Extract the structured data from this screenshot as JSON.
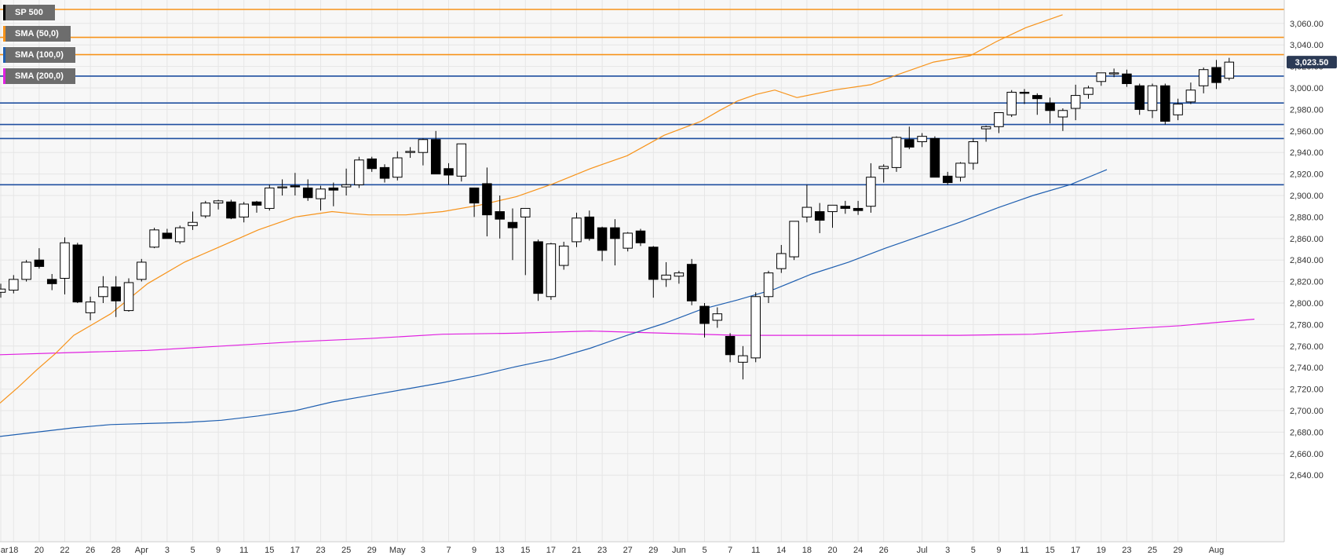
{
  "legend": [
    {
      "label": "SP 500",
      "color": "#000000"
    },
    {
      "label": "SMA (50,0)",
      "color": "#f7931a"
    },
    {
      "label": "SMA (100,0)",
      "color": "#1f5fb0"
    },
    {
      "label": "SMA (200,0)",
      "color": "#e020e0"
    }
  ],
  "current_price_label": "3,023.50",
  "chart_data": {
    "type": "candlestick",
    "instrument": "SP 500",
    "ylim": [
      2620,
      3100
    ],
    "y_ticks": [
      2640,
      2660,
      2680,
      2700,
      2720,
      2740,
      2760,
      2780,
      2800,
      2820,
      2840,
      2860,
      2880,
      2900,
      2920,
      2940,
      2960,
      2980,
      3000,
      3020,
      3040,
      3060
    ],
    "y_tick_labels": [
      "2,640.00",
      "2,660.00",
      "2,680.00",
      "2,700.00",
      "2,720.00",
      "2,740.00",
      "2,760.00",
      "2,780.00",
      "2,800.00",
      "2,820.00",
      "2,840.00",
      "2,860.00",
      "2,880.00",
      "2,900.00",
      "2,920.00",
      "2,940.00",
      "2,960.00",
      "2,980.00",
      "3,000.00",
      "3,020.00",
      "3,040.00",
      "3,060.00"
    ],
    "x_ticks": [
      {
        "label": "Mar",
        "d": 0
      },
      {
        "label": "18",
        "d": 1
      },
      {
        "label": "20",
        "d": 3
      },
      {
        "label": "22",
        "d": 5
      },
      {
        "label": "26",
        "d": 7
      },
      {
        "label": "28",
        "d": 9
      },
      {
        "label": "Apr",
        "d": 11
      },
      {
        "label": "3",
        "d": 13
      },
      {
        "label": "5",
        "d": 15
      },
      {
        "label": "9",
        "d": 17
      },
      {
        "label": "11",
        "d": 19
      },
      {
        "label": "15",
        "d": 21
      },
      {
        "label": "17",
        "d": 23
      },
      {
        "label": "23",
        "d": 25
      },
      {
        "label": "25",
        "d": 27
      },
      {
        "label": "29",
        "d": 29
      },
      {
        "label": "May",
        "d": 31
      },
      {
        "label": "3",
        "d": 33
      },
      {
        "label": "7",
        "d": 35
      },
      {
        "label": "9",
        "d": 37
      },
      {
        "label": "13",
        "d": 39
      },
      {
        "label": "15",
        "d": 41
      },
      {
        "label": "17",
        "d": 43
      },
      {
        "label": "21",
        "d": 45
      },
      {
        "label": "23",
        "d": 47
      },
      {
        "label": "27",
        "d": 49
      },
      {
        "label": "29",
        "d": 51
      },
      {
        "label": "Jun",
        "d": 53
      },
      {
        "label": "5",
        "d": 55
      },
      {
        "label": "7",
        "d": 57
      },
      {
        "label": "11",
        "d": 59
      },
      {
        "label": "14",
        "d": 61
      },
      {
        "label": "18",
        "d": 63
      },
      {
        "label": "20",
        "d": 65
      },
      {
        "label": "24",
        "d": 67
      },
      {
        "label": "26",
        "d": 69
      },
      {
        "label": "Jul",
        "d": 72
      },
      {
        "label": "3",
        "d": 74
      },
      {
        "label": "5",
        "d": 76
      },
      {
        "label": "9",
        "d": 78
      },
      {
        "label": "11",
        "d": 80
      },
      {
        "label": "15",
        "d": 82
      },
      {
        "label": "17",
        "d": 84
      },
      {
        "label": "19",
        "d": 86
      },
      {
        "label": "23",
        "d": 88
      },
      {
        "label": "25",
        "d": 90
      },
      {
        "label": "29",
        "d": 92
      },
      {
        "label": "Aug",
        "d": 95
      }
    ],
    "horizontal_levels": [
      {
        "value": 3073,
        "color": "#f7931a"
      },
      {
        "value": 3047,
        "color": "#f7931a"
      },
      {
        "value": 3031,
        "color": "#f7931a"
      },
      {
        "value": 3011,
        "color": "#1f4fa0"
      },
      {
        "value": 2986,
        "color": "#1f4fa0"
      },
      {
        "value": 2966,
        "color": "#1f4fa0"
      },
      {
        "value": 2953,
        "color": "#1f4fa0"
      },
      {
        "value": 2910,
        "color": "#1f4fa0"
      }
    ],
    "candles": [
      {
        "o": 2810,
        "h": 2818,
        "l": 2805,
        "c": 2813
      },
      {
        "o": 2812,
        "h": 2826,
        "l": 2809,
        "c": 2822
      },
      {
        "o": 2822,
        "h": 2840,
        "l": 2820,
        "c": 2838
      },
      {
        "o": 2840,
        "h": 2851,
        "l": 2832,
        "c": 2834
      },
      {
        "o": 2822,
        "h": 2827,
        "l": 2812,
        "c": 2818
      },
      {
        "o": 2823,
        "h": 2861,
        "l": 2808,
        "c": 2856
      },
      {
        "o": 2854,
        "h": 2856,
        "l": 2800,
        "c": 2801
      },
      {
        "o": 2791,
        "h": 2806,
        "l": 2784,
        "c": 2801
      },
      {
        "o": 2806,
        "h": 2825,
        "l": 2800,
        "c": 2815
      },
      {
        "o": 2815,
        "h": 2825,
        "l": 2787,
        "c": 2802
      },
      {
        "o": 2793,
        "h": 2823,
        "l": 2792,
        "c": 2819
      },
      {
        "o": 2822,
        "h": 2841,
        "l": 2820,
        "c": 2838
      },
      {
        "o": 2852,
        "h": 2870,
        "l": 2851,
        "c": 2868
      },
      {
        "o": 2865,
        "h": 2869,
        "l": 2860,
        "c": 2860
      },
      {
        "o": 2857,
        "h": 2872,
        "l": 2855,
        "c": 2870
      },
      {
        "o": 2872,
        "h": 2885,
        "l": 2868,
        "c": 2875
      },
      {
        "o": 2881,
        "h": 2895,
        "l": 2879,
        "c": 2893
      },
      {
        "o": 2893,
        "h": 2896,
        "l": 2887,
        "c": 2895
      },
      {
        "o": 2894,
        "h": 2896,
        "l": 2878,
        "c": 2879
      },
      {
        "o": 2880,
        "h": 2894,
        "l": 2875,
        "c": 2892
      },
      {
        "o": 2894,
        "h": 2895,
        "l": 2884,
        "c": 2891
      },
      {
        "o": 2888,
        "h": 2910,
        "l": 2886,
        "c": 2907
      },
      {
        "o": 2908,
        "h": 2915,
        "l": 2900,
        "c": 2908
      },
      {
        "o": 2909,
        "h": 2921,
        "l": 2900,
        "c": 2908
      },
      {
        "o": 2907,
        "h": 2915,
        "l": 2895,
        "c": 2898
      },
      {
        "o": 2897,
        "h": 2909,
        "l": 2886,
        "c": 2906
      },
      {
        "o": 2907,
        "h": 2912,
        "l": 2890,
        "c": 2905
      },
      {
        "o": 2908,
        "h": 2925,
        "l": 2900,
        "c": 2910
      },
      {
        "o": 2910,
        "h": 2936,
        "l": 2907,
        "c": 2933
      },
      {
        "o": 2934,
        "h": 2936,
        "l": 2922,
        "c": 2925
      },
      {
        "o": 2926,
        "h": 2929,
        "l": 2912,
        "c": 2916
      },
      {
        "o": 2917,
        "h": 2941,
        "l": 2914,
        "c": 2935
      },
      {
        "o": 2940,
        "h": 2945,
        "l": 2935,
        "c": 2941
      },
      {
        "o": 2940,
        "h": 2953,
        "l": 2928,
        "c": 2952
      },
      {
        "o": 2952,
        "h": 2960,
        "l": 2920,
        "c": 2920
      },
      {
        "o": 2925,
        "h": 2930,
        "l": 2910,
        "c": 2919
      },
      {
        "o": 2918,
        "h": 2948,
        "l": 2913,
        "c": 2948
      },
      {
        "o": 2907,
        "h": 2907,
        "l": 2880,
        "c": 2893
      },
      {
        "o": 2911,
        "h": 2926,
        "l": 2862,
        "c": 2882
      },
      {
        "o": 2885,
        "h": 2900,
        "l": 2860,
        "c": 2878
      },
      {
        "o": 2875,
        "h": 2888,
        "l": 2840,
        "c": 2870
      },
      {
        "o": 2880,
        "h": 2886,
        "l": 2826,
        "c": 2888
      },
      {
        "o": 2857,
        "h": 2859,
        "l": 2802,
        "c": 2809
      },
      {
        "o": 2806,
        "h": 2856,
        "l": 2803,
        "c": 2855
      },
      {
        "o": 2835,
        "h": 2857,
        "l": 2831,
        "c": 2853
      },
      {
        "o": 2857,
        "h": 2884,
        "l": 2852,
        "c": 2879
      },
      {
        "o": 2880,
        "h": 2886,
        "l": 2858,
        "c": 2860
      },
      {
        "o": 2870,
        "h": 2871,
        "l": 2839,
        "c": 2849
      },
      {
        "o": 2870,
        "h": 2878,
        "l": 2835,
        "c": 2860
      },
      {
        "o": 2851,
        "h": 2866,
        "l": 2848,
        "c": 2865
      },
      {
        "o": 2867,
        "h": 2869,
        "l": 2853,
        "c": 2856
      },
      {
        "o": 2852,
        "h": 2853,
        "l": 2805,
        "c": 2822
      },
      {
        "o": 2822,
        "h": 2838,
        "l": 2815,
        "c": 2826
      },
      {
        "o": 2825,
        "h": 2830,
        "l": 2818,
        "c": 2828
      },
      {
        "o": 2836,
        "h": 2841,
        "l": 2798,
        "c": 2802
      },
      {
        "o": 2797,
        "h": 2800,
        "l": 2768,
        "c": 2781
      },
      {
        "o": 2784,
        "h": 2796,
        "l": 2777,
        "c": 2790
      },
      {
        "o": 2769,
        "h": 2772,
        "l": 2745,
        "c": 2752
      },
      {
        "o": 2745,
        "h": 2760,
        "l": 2729,
        "c": 2751
      },
      {
        "o": 2749,
        "h": 2810,
        "l": 2745,
        "c": 2806
      },
      {
        "o": 2806,
        "h": 2830,
        "l": 2800,
        "c": 2828
      },
      {
        "o": 2832,
        "h": 2854,
        "l": 2828,
        "c": 2846
      },
      {
        "o": 2843,
        "h": 2876,
        "l": 2840,
        "c": 2876
      },
      {
        "o": 2880,
        "h": 2910,
        "l": 2875,
        "c": 2889
      },
      {
        "o": 2885,
        "h": 2893,
        "l": 2865,
        "c": 2877
      },
      {
        "o": 2885,
        "h": 2891,
        "l": 2870,
        "c": 2891
      },
      {
        "o": 2890,
        "h": 2895,
        "l": 2883,
        "c": 2888
      },
      {
        "o": 2888,
        "h": 2895,
        "l": 2882,
        "c": 2886
      },
      {
        "o": 2890,
        "h": 2930,
        "l": 2884,
        "c": 2917
      },
      {
        "o": 2925,
        "h": 2929,
        "l": 2912,
        "c": 2927
      },
      {
        "o": 2926,
        "h": 2955,
        "l": 2922,
        "c": 2954
      },
      {
        "o": 2952,
        "h": 2964,
        "l": 2943,
        "c": 2945
      },
      {
        "o": 2950,
        "h": 2958,
        "l": 2945,
        "c": 2955
      },
      {
        "o": 2953,
        "h": 2955,
        "l": 2917,
        "c": 2917
      },
      {
        "o": 2918,
        "h": 2922,
        "l": 2910,
        "c": 2912
      },
      {
        "o": 2917,
        "h": 2931,
        "l": 2913,
        "c": 2930
      },
      {
        "o": 2930,
        "h": 2953,
        "l": 2924,
        "c": 2950
      },
      {
        "o": 2962,
        "h": 2965,
        "l": 2950,
        "c": 2964
      },
      {
        "o": 2964,
        "h": 2977,
        "l": 2958,
        "c": 2977
      },
      {
        "o": 2975,
        "h": 2998,
        "l": 2973,
        "c": 2996
      },
      {
        "o": 2996,
        "h": 2999,
        "l": 2985,
        "c": 2995
      },
      {
        "o": 2993,
        "h": 2995,
        "l": 2975,
        "c": 2990
      },
      {
        "o": 2986,
        "h": 2991,
        "l": 2967,
        "c": 2979
      },
      {
        "o": 2973,
        "h": 2981,
        "l": 2960,
        "c": 2979
      },
      {
        "o": 2981,
        "h": 3003,
        "l": 2970,
        "c": 2993
      },
      {
        "o": 2994,
        "h": 3002,
        "l": 2990,
        "c": 3000
      },
      {
        "o": 3006,
        "h": 3014,
        "l": 3002,
        "c": 3014
      },
      {
        "o": 3013,
        "h": 3018,
        "l": 3010,
        "c": 3014
      },
      {
        "o": 3013,
        "h": 3017,
        "l": 3001,
        "c": 3004
      },
      {
        "o": 3002,
        "h": 3004,
        "l": 2975,
        "c": 2980
      },
      {
        "o": 2979,
        "h": 3004,
        "l": 2972,
        "c": 3002
      },
      {
        "o": 3002,
        "h": 3004,
        "l": 2966,
        "c": 2969
      },
      {
        "o": 2975,
        "h": 2990,
        "l": 2970,
        "c": 2985
      },
      {
        "o": 2987,
        "h": 3005,
        "l": 2985,
        "c": 2998
      },
      {
        "o": 3002,
        "h": 3019,
        "l": 2995,
        "c": 3017
      },
      {
        "o": 3019,
        "h": 3026,
        "l": 2999,
        "c": 3005
      },
      {
        "o": 3009,
        "h": 3028,
        "l": 3007,
        "c": 3024
      }
    ],
    "sma50": [
      [
        0,
        2707
      ],
      [
        5,
        2722
      ],
      [
        10,
        2738
      ],
      [
        15,
        2753
      ],
      [
        20,
        2770
      ],
      [
        30,
        2790
      ],
      [
        40,
        2818
      ],
      [
        50,
        2838
      ],
      [
        60,
        2853
      ],
      [
        70,
        2868
      ],
      [
        80,
        2880
      ],
      [
        90,
        2885
      ],
      [
        96,
        2883
      ],
      [
        100,
        2882
      ],
      [
        110,
        2882
      ],
      [
        120,
        2885
      ],
      [
        130,
        2891
      ],
      [
        140,
        2899
      ],
      [
        150,
        2911
      ],
      [
        160,
        2925
      ],
      [
        170,
        2937
      ],
      [
        180,
        2956
      ],
      [
        190,
        2969
      ],
      [
        195,
        2979
      ],
      [
        200,
        2988
      ],
      [
        205,
        2994
      ],
      [
        210,
        2998
      ],
      [
        216,
        2991
      ],
      [
        226,
        2998
      ],
      [
        236,
        3003
      ],
      [
        243,
        3012
      ],
      [
        253,
        3024
      ],
      [
        263,
        3030
      ],
      [
        270,
        3043
      ],
      [
        278,
        3056
      ],
      [
        288,
        3068
      ]
    ],
    "sma100": [
      [
        0,
        2676
      ],
      [
        10,
        2680
      ],
      [
        20,
        2684
      ],
      [
        30,
        2687
      ],
      [
        40,
        2688
      ],
      [
        50,
        2689
      ],
      [
        60,
        2691
      ],
      [
        70,
        2695
      ],
      [
        80,
        2700
      ],
      [
        90,
        2708
      ],
      [
        100,
        2714
      ],
      [
        110,
        2720
      ],
      [
        120,
        2726
      ],
      [
        130,
        2733
      ],
      [
        140,
        2741
      ],
      [
        150,
        2748
      ],
      [
        160,
        2758
      ],
      [
        170,
        2770
      ],
      [
        180,
        2781
      ],
      [
        190,
        2794
      ],
      [
        200,
        2803
      ],
      [
        210,
        2813
      ],
      [
        220,
        2827
      ],
      [
        230,
        2838
      ],
      [
        240,
        2851
      ],
      [
        250,
        2863
      ],
      [
        260,
        2875
      ],
      [
        270,
        2888
      ],
      [
        280,
        2900
      ],
      [
        290,
        2910
      ],
      [
        300,
        2924
      ]
    ],
    "sma200": [
      [
        0,
        2752
      ],
      [
        20,
        2754
      ],
      [
        40,
        2756
      ],
      [
        60,
        2760
      ],
      [
        80,
        2764
      ],
      [
        100,
        2767
      ],
      [
        120,
        2771
      ],
      [
        140,
        2772
      ],
      [
        160,
        2774
      ],
      [
        180,
        2772
      ],
      [
        200,
        2770
      ],
      [
        220,
        2770
      ],
      [
        240,
        2770
      ],
      [
        260,
        2770
      ],
      [
        280,
        2771
      ],
      [
        300,
        2775
      ],
      [
        320,
        2779
      ],
      [
        340,
        2785
      ]
    ]
  }
}
